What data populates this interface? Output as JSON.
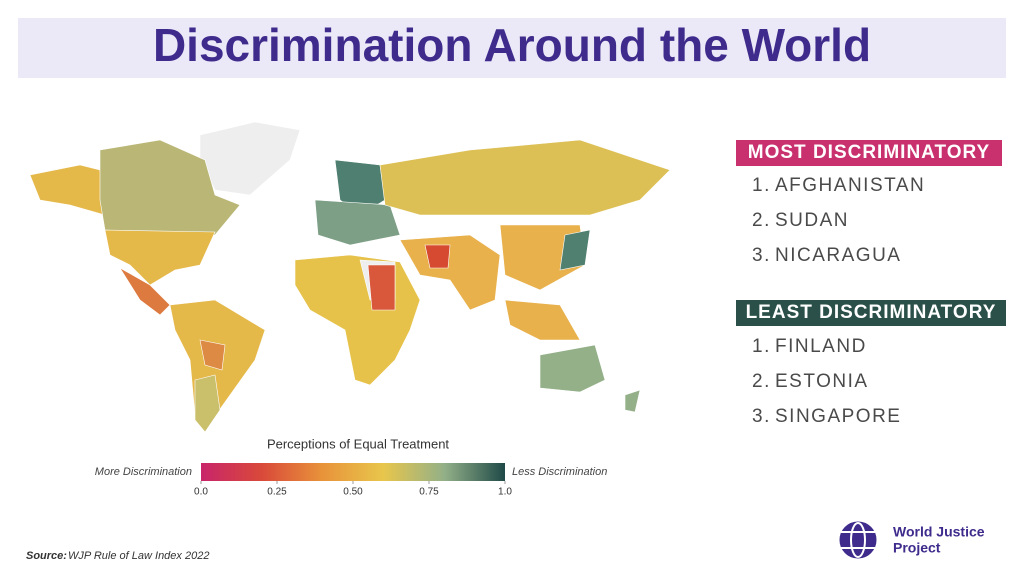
{
  "title": "Discrimination Around the World",
  "most": {
    "heading": "MOST DISCRIMINATORY",
    "items": [
      {
        "rank": "1.",
        "name": "AFGHANISTAN"
      },
      {
        "rank": "2.",
        "name": "SUDAN"
      },
      {
        "rank": "3.",
        "name": "NICARAGUA"
      }
    ]
  },
  "least": {
    "heading": "LEAST DISCRIMINATORY",
    "items": [
      {
        "rank": "1.",
        "name": "FINLAND"
      },
      {
        "rank": "2.",
        "name": "ESTONIA"
      },
      {
        "rank": "3.",
        "name": "SINGAPORE"
      }
    ]
  },
  "legend": {
    "title": "Perceptions of Equal Treatment",
    "low_label": "More Discrimination",
    "high_label": "Less Discrimination",
    "range": [
      0,
      1
    ],
    "ticks": [
      {
        "value": 0,
        "label": "0.0"
      },
      0.25,
      {
        "value": 0.5,
        "label": "0.50"
      },
      0.75,
      {
        "value": 1,
        "label": "1.0"
      }
    ],
    "colors": [
      "#c8256a",
      "#d9493a",
      "#e8933a",
      "#e8c64c",
      "#93b088",
      "#1f4a48"
    ]
  },
  "source": {
    "label": "Source:",
    "text": "WJP Rule of Law Index 2022"
  },
  "logo": {
    "line1": "World Justice",
    "line2": "Project"
  }
}
